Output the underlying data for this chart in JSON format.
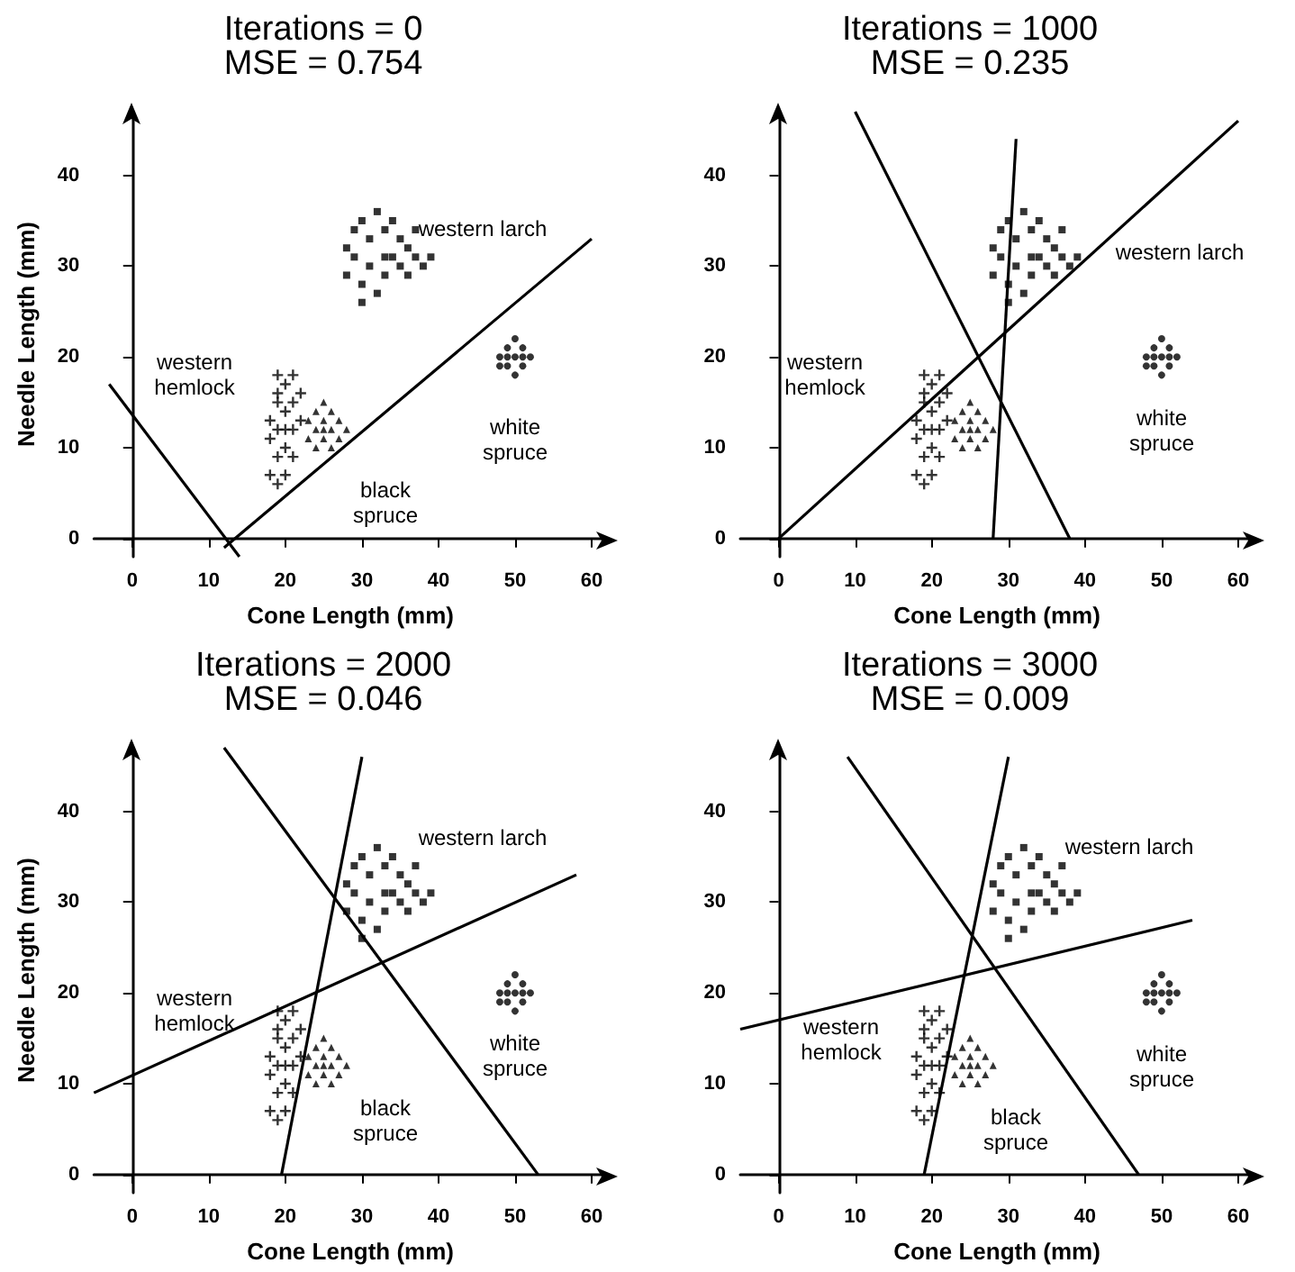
{
  "chart_data": [
    {
      "type": "scatter",
      "title": "Iterations = 0",
      "subtitle": "MSE = 0.754",
      "xlabel": "Cone Length (mm)",
      "ylabel": "Needle Length (mm)",
      "xlim": [
        -5,
        62
      ],
      "ylim": [
        -2,
        47
      ],
      "xticks": [
        0,
        10,
        20,
        30,
        40,
        50,
        60
      ],
      "yticks": [
        0,
        10,
        20,
        30,
        40
      ],
      "annotations": [
        "western larch",
        "western\nhemlock",
        "black\nspruce",
        "white\nspruce"
      ],
      "series": [
        {
          "marker": "square",
          "color": "#000000",
          "x": [
            28,
            29,
            30,
            31,
            32,
            33,
            34,
            35,
            36,
            37,
            38,
            39,
            28,
            30,
            31,
            32,
            33,
            34,
            35,
            36,
            30,
            33,
            29,
            37
          ],
          "values": [
            32,
            34,
            35,
            33,
            36,
            34,
            35,
            33,
            32,
            31,
            30,
            31,
            29,
            28,
            30,
            27,
            29,
            31,
            30,
            29,
            26,
            31,
            31,
            34
          ]
        },
        {
          "marker": "circle",
          "color": "#000000",
          "x": [
            48,
            49,
            50,
            51,
            52,
            49,
            50,
            51,
            50,
            49,
            51,
            48
          ],
          "values": [
            20,
            21,
            22,
            20,
            20,
            19,
            18,
            19,
            20,
            20,
            21,
            19
          ]
        },
        {
          "marker": "cross",
          "color": "#000000",
          "x": [
            19,
            21,
            20,
            19,
            21,
            20,
            18,
            22,
            19,
            21,
            18,
            20,
            19,
            21,
            18,
            20,
            19,
            20,
            22,
            19
          ],
          "values": [
            18,
            18,
            17,
            15,
            15,
            14,
            13,
            13,
            12,
            12,
            11,
            10,
            9,
            9,
            7,
            7,
            6,
            12,
            16,
            16
          ]
        },
        {
          "marker": "triangle",
          "color": "#000000",
          "x": [
            23,
            24,
            25,
            26,
            27,
            24,
            25,
            26,
            27,
            23,
            25,
            24,
            26,
            28,
            25
          ],
          "values": [
            13,
            14,
            15,
            14,
            13,
            12,
            12,
            12,
            11,
            11,
            11,
            10,
            10,
            12,
            13
          ]
        },
        {
          "type": "line",
          "marker": "none",
          "color": "#000000",
          "x": [
            -3,
            14
          ],
          "values": [
            17,
            -2
          ]
        },
        {
          "type": "line",
          "marker": "none",
          "color": "#000000",
          "x": [
            12,
            60
          ],
          "values": [
            -1,
            33
          ]
        }
      ]
    },
    {
      "type": "scatter",
      "title": "Iterations = 1000",
      "subtitle": "MSE = 0.235",
      "xlabel": "Cone Length (mm)",
      "xlim": [
        -5,
        62
      ],
      "ylim": [
        -2,
        47
      ],
      "xticks": [
        0,
        10,
        20,
        30,
        40,
        50,
        60
      ],
      "yticks": [
        0,
        10,
        20,
        30,
        40
      ],
      "annotations": [
        "western larch",
        "western\nhemlock",
        "white\nspruce"
      ],
      "series": [
        {
          "marker": "square",
          "color": "#000000",
          "x": [
            28,
            29,
            30,
            31,
            32,
            33,
            34,
            35,
            36,
            37,
            38,
            39,
            28,
            30,
            31,
            32,
            33,
            34,
            35,
            36,
            30,
            33,
            29,
            37
          ],
          "values": [
            32,
            34,
            35,
            33,
            36,
            34,
            35,
            33,
            32,
            31,
            30,
            31,
            29,
            28,
            30,
            27,
            29,
            31,
            30,
            29,
            26,
            31,
            31,
            34
          ]
        },
        {
          "marker": "circle",
          "color": "#000000",
          "x": [
            48,
            49,
            50,
            51,
            52,
            49,
            50,
            51,
            50,
            49,
            51,
            48
          ],
          "values": [
            20,
            21,
            22,
            20,
            20,
            19,
            18,
            19,
            20,
            20,
            21,
            19
          ]
        },
        {
          "marker": "cross",
          "color": "#000000",
          "x": [
            19,
            21,
            20,
            19,
            21,
            20,
            18,
            22,
            19,
            21,
            18,
            20,
            19,
            21,
            18,
            20,
            19,
            20,
            22,
            19
          ],
          "values": [
            18,
            18,
            17,
            15,
            15,
            14,
            13,
            13,
            12,
            12,
            11,
            10,
            9,
            9,
            7,
            7,
            6,
            12,
            16,
            16
          ]
        },
        {
          "marker": "triangle",
          "color": "#000000",
          "x": [
            23,
            24,
            25,
            26,
            27,
            24,
            25,
            26,
            27,
            23,
            25,
            24,
            26,
            28,
            25
          ],
          "values": [
            13,
            14,
            15,
            14,
            13,
            12,
            12,
            12,
            11,
            11,
            11,
            10,
            10,
            12,
            13
          ]
        },
        {
          "type": "line",
          "marker": "none",
          "color": "#000000",
          "x": [
            0,
            60
          ],
          "values": [
            0,
            46
          ]
        },
        {
          "type": "line",
          "marker": "none",
          "color": "#000000",
          "x": [
            28,
            31
          ],
          "values": [
            0,
            44
          ]
        },
        {
          "type": "line",
          "marker": "none",
          "color": "#000000",
          "x": [
            10,
            38
          ],
          "values": [
            47,
            0
          ]
        }
      ]
    },
    {
      "type": "scatter",
      "title": "Iterations = 2000",
      "subtitle": "MSE = 0.046",
      "xlabel": "Cone Length (mm)",
      "ylabel": "Needle Length (mm)",
      "xlim": [
        -5,
        62
      ],
      "ylim": [
        -2,
        47
      ],
      "xticks": [
        0,
        10,
        20,
        30,
        40,
        50,
        60
      ],
      "yticks": [
        0,
        10,
        20,
        30,
        40
      ],
      "annotations": [
        "western larch",
        "western\nhemlock",
        "black\nspruce",
        "white\nspruce"
      ],
      "series": [
        {
          "marker": "square",
          "color": "#000000",
          "x": [
            28,
            29,
            30,
            31,
            32,
            33,
            34,
            35,
            36,
            37,
            38,
            39,
            28,
            30,
            31,
            32,
            33,
            34,
            35,
            36,
            30,
            33,
            29,
            37
          ],
          "values": [
            32,
            34,
            35,
            33,
            36,
            34,
            35,
            33,
            32,
            31,
            30,
            31,
            29,
            28,
            30,
            27,
            29,
            31,
            30,
            29,
            26,
            31,
            31,
            34
          ]
        },
        {
          "marker": "circle",
          "color": "#000000",
          "x": [
            48,
            49,
            50,
            51,
            52,
            49,
            50,
            51,
            50,
            49,
            51,
            48
          ],
          "values": [
            20,
            21,
            22,
            20,
            20,
            19,
            18,
            19,
            20,
            20,
            21,
            19
          ]
        },
        {
          "marker": "cross",
          "color": "#000000",
          "x": [
            19,
            21,
            20,
            19,
            21,
            20,
            18,
            22,
            19,
            21,
            18,
            20,
            19,
            21,
            18,
            20,
            19,
            20,
            22,
            19
          ],
          "values": [
            18,
            18,
            17,
            15,
            15,
            14,
            13,
            13,
            12,
            12,
            11,
            10,
            9,
            9,
            7,
            7,
            6,
            12,
            16,
            16
          ]
        },
        {
          "marker": "triangle",
          "color": "#000000",
          "x": [
            23,
            24,
            25,
            26,
            27,
            24,
            25,
            26,
            27,
            23,
            25,
            24,
            26,
            28,
            25
          ],
          "values": [
            13,
            14,
            15,
            14,
            13,
            12,
            12,
            12,
            11,
            11,
            11,
            10,
            10,
            12,
            13
          ]
        },
        {
          "type": "line",
          "marker": "none",
          "color": "#000000",
          "x": [
            -5,
            58
          ],
          "values": [
            9,
            33
          ]
        },
        {
          "type": "line",
          "marker": "none",
          "color": "#000000",
          "x": [
            19.5,
            30
          ],
          "values": [
            0,
            46
          ]
        },
        {
          "type": "line",
          "marker": "none",
          "color": "#000000",
          "x": [
            12,
            53
          ],
          "values": [
            47,
            0
          ]
        }
      ]
    },
    {
      "type": "scatter",
      "title": "Iterations = 3000",
      "subtitle": "MSE = 0.009",
      "xlabel": "Cone Length (mm)",
      "xlim": [
        -5,
        62
      ],
      "ylim": [
        -2,
        47
      ],
      "xticks": [
        0,
        10,
        20,
        30,
        40,
        50,
        60
      ],
      "yticks": [
        0,
        10,
        20,
        30,
        40
      ],
      "annotations": [
        "western larch",
        "western\nhemlock",
        "black\nspruce",
        "white\nspruce"
      ],
      "series": [
        {
          "marker": "square",
          "color": "#000000",
          "x": [
            28,
            29,
            30,
            31,
            32,
            33,
            34,
            35,
            36,
            37,
            38,
            39,
            28,
            30,
            31,
            32,
            33,
            34,
            35,
            36,
            30,
            33,
            29,
            37
          ],
          "values": [
            32,
            34,
            35,
            33,
            36,
            34,
            35,
            33,
            32,
            31,
            30,
            31,
            29,
            28,
            30,
            27,
            29,
            31,
            30,
            29,
            26,
            31,
            31,
            34
          ]
        },
        {
          "marker": "circle",
          "color": "#000000",
          "x": [
            48,
            49,
            50,
            51,
            52,
            49,
            50,
            51,
            50,
            49,
            51,
            48
          ],
          "values": [
            20,
            21,
            22,
            20,
            20,
            19,
            18,
            19,
            20,
            20,
            21,
            19
          ]
        },
        {
          "marker": "cross",
          "color": "#000000",
          "x": [
            19,
            21,
            20,
            19,
            21,
            20,
            18,
            22,
            19,
            21,
            18,
            20,
            19,
            21,
            18,
            20,
            19,
            20,
            22,
            19
          ],
          "values": [
            18,
            18,
            17,
            15,
            15,
            14,
            13,
            13,
            12,
            12,
            11,
            10,
            9,
            9,
            7,
            7,
            6,
            12,
            16,
            16
          ]
        },
        {
          "marker": "triangle",
          "color": "#000000",
          "x": [
            23,
            24,
            25,
            26,
            27,
            24,
            25,
            26,
            27,
            23,
            25,
            24,
            26,
            28,
            25
          ],
          "values": [
            13,
            14,
            15,
            14,
            13,
            12,
            12,
            12,
            11,
            11,
            11,
            10,
            10,
            12,
            13
          ]
        },
        {
          "type": "line",
          "marker": "none",
          "color": "#000000",
          "x": [
            -5,
            54
          ],
          "values": [
            16,
            28
          ]
        },
        {
          "type": "line",
          "marker": "none",
          "color": "#000000",
          "x": [
            19,
            30
          ],
          "values": [
            0,
            46
          ]
        },
        {
          "type": "line",
          "marker": "none",
          "color": "#000000",
          "x": [
            9,
            47
          ],
          "values": [
            46,
            0
          ]
        }
      ]
    }
  ]
}
